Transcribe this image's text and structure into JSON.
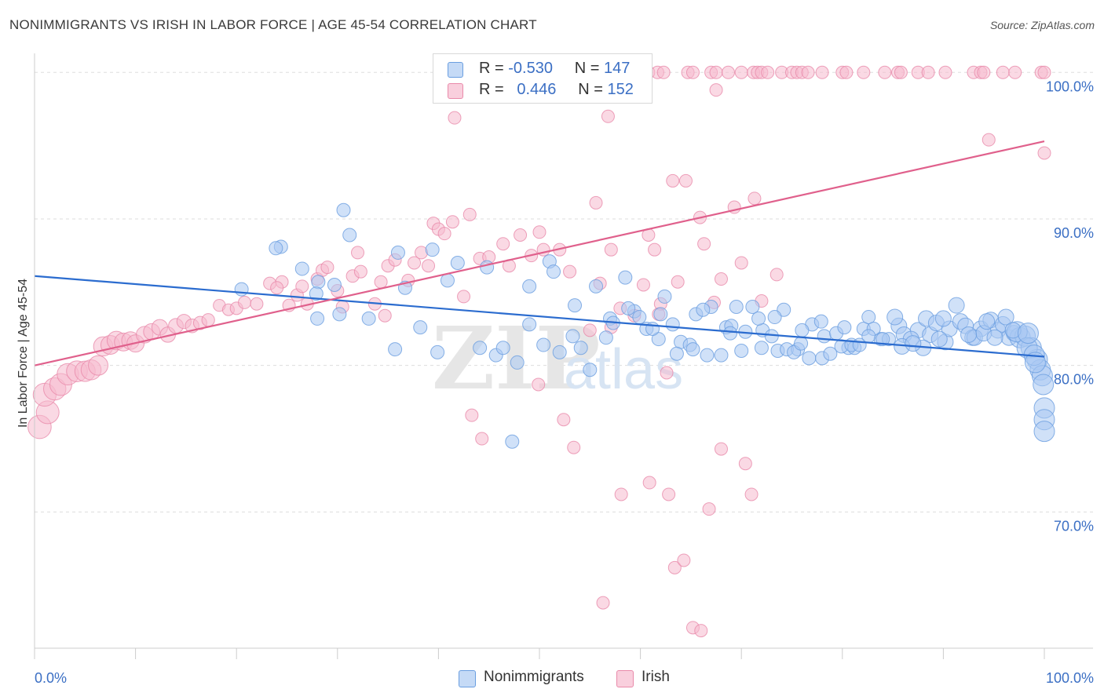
{
  "title": "NONIMMIGRANTS VS IRISH IN LABOR FORCE | AGE 45-54 CORRELATION CHART",
  "source": "Source: ZipAtlas.com",
  "watermark": {
    "zip": "ZIP",
    "atlas": "atlas"
  },
  "legend_top": [
    {
      "r_label": "R =",
      "r_value": "-0.530",
      "n_label": "N =",
      "n_value": "147"
    },
    {
      "r_label": "R =",
      "r_value": "0.446",
      "n_label": "N =",
      "n_value": "152"
    }
  ],
  "colors": {
    "blue_fill": "#a9c9f2",
    "blue_stroke": "#6a9ee0",
    "blue_line": "#2b6ccf",
    "pink_fill": "#f6b9cd",
    "pink_stroke": "#e98aaa",
    "pink_line": "#e0608c",
    "grid": "#dddddd",
    "axis_label": "#3b6fc4"
  },
  "chart_data": {
    "type": "scatter",
    "title": "NONIMMIGRANTS VS IRISH IN LABOR FORCE | AGE 45-54 CORRELATION CHART",
    "xlabel": "",
    "ylabel": "In Labor Force | Age 45-54",
    "xlim": [
      0,
      100
    ],
    "ylim": [
      60.7,
      101.3
    ],
    "x_tick_labels": [
      "0.0%",
      "100.0%"
    ],
    "y_ticks": [
      70,
      80,
      90,
      100
    ],
    "y_tick_labels": [
      "70.0%",
      "80.0%",
      "90.0%",
      "100.0%"
    ],
    "grid": true,
    "legend_position": "bottom",
    "series": [
      {
        "name": "Nonimmigrants",
        "r": -0.53,
        "n": 147,
        "trend": {
          "x": [
            0,
            100
          ],
          "y": [
            86.1,
            80.6
          ]
        },
        "points": [
          [
            30.6,
            90.6
          ],
          [
            24.4,
            88.1
          ],
          [
            23.9,
            88.0
          ],
          [
            31.2,
            88.9
          ],
          [
            36.0,
            87.7
          ],
          [
            39.4,
            87.9
          ],
          [
            41.9,
            87.0
          ],
          [
            44.8,
            86.7
          ],
          [
            51.0,
            87.1
          ],
          [
            26.5,
            86.6
          ],
          [
            28.1,
            85.7
          ],
          [
            29.7,
            85.5
          ],
          [
            40.9,
            85.8
          ],
          [
            49.0,
            85.4
          ],
          [
            51.4,
            86.4
          ],
          [
            55.6,
            85.4
          ],
          [
            58.5,
            86.0
          ],
          [
            62.4,
            84.7
          ],
          [
            36.7,
            85.3
          ],
          [
            27.9,
            84.9
          ],
          [
            30.2,
            83.5
          ],
          [
            33.1,
            83.2
          ],
          [
            38.2,
            82.6
          ],
          [
            35.7,
            81.1
          ],
          [
            39.9,
            80.9
          ],
          [
            45.7,
            80.7
          ],
          [
            47.8,
            80.2
          ],
          [
            28.0,
            83.2
          ],
          [
            20.5,
            85.2
          ],
          [
            44.1,
            81.2
          ],
          [
            46.4,
            81.2
          ],
          [
            49.0,
            82.8
          ],
          [
            50.4,
            81.4
          ],
          [
            54.1,
            81.2
          ],
          [
            57.0,
            83.2
          ],
          [
            59.4,
            83.7
          ],
          [
            60.6,
            82.5
          ],
          [
            61.8,
            81.8
          ],
          [
            64.0,
            81.6
          ],
          [
            64.9,
            81.4
          ],
          [
            66.6,
            80.7
          ],
          [
            68.0,
            80.7
          ],
          [
            68.5,
            82.6
          ],
          [
            69.5,
            84.0
          ],
          [
            72.0,
            81.2
          ],
          [
            72.1,
            82.4
          ],
          [
            73.6,
            81.0
          ],
          [
            74.5,
            81.1
          ],
          [
            75.6,
            81.1
          ],
          [
            76.7,
            80.5
          ],
          [
            77.0,
            82.8
          ],
          [
            78.0,
            80.5
          ],
          [
            78.2,
            82.0
          ],
          [
            79.4,
            82.2
          ],
          [
            80.6,
            81.2
          ],
          [
            81.2,
            81.2
          ],
          [
            82.1,
            82.5
          ],
          [
            82.6,
            83.3
          ],
          [
            83.8,
            81.8
          ],
          [
            84.6,
            81.8
          ],
          [
            85.6,
            82.7
          ],
          [
            86.1,
            82.1
          ],
          [
            87.5,
            82.4
          ],
          [
            88.3,
            83.2
          ],
          [
            88.7,
            82.1
          ],
          [
            89.3,
            82.9
          ],
          [
            90.2,
            81.6
          ],
          [
            90.6,
            82.5
          ],
          [
            91.7,
            83.0
          ],
          [
            92.2,
            82.7
          ],
          [
            92.9,
            81.9
          ],
          [
            93.7,
            82.5
          ],
          [
            94.7,
            83.1
          ],
          [
            95.4,
            82.4
          ],
          [
            95.9,
            82.8
          ],
          [
            96.5,
            81.9
          ],
          [
            97.0,
            82.2
          ],
          [
            97.6,
            81.9
          ],
          [
            98.1,
            82.0
          ],
          [
            98.7,
            81.2
          ],
          [
            99.3,
            80.4
          ],
          [
            99.6,
            79.7
          ],
          [
            99.8,
            79.3
          ],
          [
            99.9,
            78.7
          ],
          [
            100.0,
            77.1
          ],
          [
            100.0,
            76.3
          ],
          [
            100.0,
            75.5
          ],
          [
            55.0,
            79.7
          ],
          [
            52.0,
            80.9
          ],
          [
            57.3,
            82.9
          ],
          [
            58.8,
            83.9
          ],
          [
            62.0,
            83.5
          ],
          [
            63.2,
            82.8
          ],
          [
            65.5,
            83.5
          ],
          [
            67.0,
            84.0
          ],
          [
            69.0,
            82.7
          ],
          [
            70.4,
            82.3
          ],
          [
            71.1,
            84.0
          ],
          [
            73.0,
            82.0
          ],
          [
            74.2,
            83.8
          ],
          [
            76.0,
            82.4
          ],
          [
            77.9,
            83.0
          ],
          [
            79.9,
            81.3
          ],
          [
            80.9,
            81.4
          ],
          [
            81.7,
            81.4
          ],
          [
            83.1,
            82.5
          ],
          [
            84.0,
            81.8
          ],
          [
            85.2,
            83.3
          ],
          [
            86.8,
            81.8
          ],
          [
            88.0,
            81.2
          ],
          [
            90.0,
            83.2
          ],
          [
            91.3,
            84.1
          ],
          [
            93.1,
            81.9
          ],
          [
            94.0,
            82.2
          ],
          [
            95.1,
            81.9
          ],
          [
            96.2,
            83.3
          ],
          [
            97.3,
            82.3
          ],
          [
            98.3,
            81.2
          ],
          [
            99.0,
            80.7
          ],
          [
            47.3,
            74.8
          ],
          [
            56.6,
            81.9
          ],
          [
            53.3,
            82.0
          ],
          [
            53.5,
            84.1
          ],
          [
            61.2,
            82.5
          ],
          [
            66.2,
            83.8
          ],
          [
            68.9,
            82.2
          ],
          [
            71.7,
            83.2
          ],
          [
            75.2,
            80.9
          ],
          [
            78.8,
            80.8
          ],
          [
            82.6,
            82.0
          ],
          [
            85.9,
            81.3
          ],
          [
            87.0,
            81.5
          ],
          [
            89.6,
            81.8
          ],
          [
            92.5,
            82.1
          ],
          [
            94.3,
            83.0
          ],
          [
            96.9,
            82.4
          ],
          [
            98.4,
            82.2
          ],
          [
            99.1,
            80.2
          ],
          [
            59.9,
            83.3
          ],
          [
            63.6,
            80.8
          ],
          [
            65.2,
            81.1
          ],
          [
            70.0,
            81.0
          ],
          [
            73.3,
            83.3
          ],
          [
            75.9,
            81.5
          ],
          [
            80.2,
            82.6
          ]
        ]
      },
      {
        "name": "Irish",
        "r": 0.446,
        "n": 152,
        "trend": {
          "x": [
            0,
            100
          ],
          "y": [
            80.0,
            95.3
          ]
        },
        "points": [
          [
            0.5,
            75.8
          ],
          [
            1.3,
            76.8
          ],
          [
            1.0,
            78.0
          ],
          [
            2.0,
            78.4
          ],
          [
            2.6,
            78.7
          ],
          [
            3.3,
            79.4
          ],
          [
            4.2,
            79.6
          ],
          [
            5.0,
            79.6
          ],
          [
            5.6,
            79.7
          ],
          [
            6.3,
            80.0
          ],
          [
            6.8,
            81.3
          ],
          [
            7.5,
            81.4
          ],
          [
            8.1,
            81.7
          ],
          [
            8.8,
            81.6
          ],
          [
            9.5,
            81.7
          ],
          [
            10.0,
            81.5
          ],
          [
            10.9,
            82.1
          ],
          [
            11.6,
            82.3
          ],
          [
            12.4,
            82.6
          ],
          [
            13.2,
            82.1
          ],
          [
            14.0,
            82.7
          ],
          [
            14.8,
            83.0
          ],
          [
            15.6,
            82.7
          ],
          [
            16.4,
            82.9
          ],
          [
            17.2,
            83.1
          ],
          [
            18.3,
            84.1
          ],
          [
            19.2,
            83.8
          ],
          [
            20.0,
            83.9
          ],
          [
            20.8,
            84.3
          ],
          [
            22.0,
            84.2
          ],
          [
            23.3,
            85.6
          ],
          [
            24.5,
            85.7
          ],
          [
            25.2,
            84.1
          ],
          [
            26.0,
            84.8
          ],
          [
            26.5,
            85.4
          ],
          [
            27.0,
            84.2
          ],
          [
            28.0,
            85.9
          ],
          [
            28.5,
            86.5
          ],
          [
            29.0,
            86.7
          ],
          [
            30.0,
            85.1
          ],
          [
            30.5,
            84.0
          ],
          [
            31.5,
            86.1
          ],
          [
            32.0,
            87.7
          ],
          [
            32.3,
            86.4
          ],
          [
            33.7,
            84.2
          ],
          [
            34.3,
            85.7
          ],
          [
            35.0,
            86.8
          ],
          [
            35.7,
            87.2
          ],
          [
            37.0,
            85.8
          ],
          [
            37.6,
            87.0
          ],
          [
            38.3,
            87.7
          ],
          [
            39.0,
            86.8
          ],
          [
            39.5,
            89.7
          ],
          [
            40.0,
            89.3
          ],
          [
            40.6,
            89.0
          ],
          [
            41.4,
            89.8
          ],
          [
            42.5,
            84.7
          ],
          [
            43.1,
            90.3
          ],
          [
            44.1,
            87.3
          ],
          [
            45.0,
            87.4
          ],
          [
            46.4,
            88.3
          ],
          [
            47.0,
            86.8
          ],
          [
            48.1,
            88.9
          ],
          [
            49.2,
            87.5
          ],
          [
            50.0,
            89.1
          ],
          [
            50.4,
            87.9
          ],
          [
            52.0,
            87.9
          ],
          [
            53.0,
            86.4
          ],
          [
            55.6,
            91.1
          ],
          [
            56.0,
            85.6
          ],
          [
            57.1,
            87.9
          ],
          [
            58.0,
            83.9
          ],
          [
            59.4,
            83.4
          ],
          [
            60.3,
            85.5
          ],
          [
            60.8,
            88.9
          ],
          [
            61.4,
            87.9
          ],
          [
            62.0,
            84.2
          ],
          [
            63.2,
            92.6
          ],
          [
            63.7,
            85.7
          ],
          [
            64.5,
            92.6
          ],
          [
            65.9,
            90.1
          ],
          [
            66.3,
            88.3
          ],
          [
            67.3,
            84.3
          ],
          [
            68.0,
            85.9
          ],
          [
            69.3,
            90.8
          ],
          [
            70.0,
            87.0
          ],
          [
            71.3,
            91.4
          ],
          [
            72.0,
            84.4
          ],
          [
            73.5,
            86.2
          ],
          [
            56.8,
            97.0
          ],
          [
            67.5,
            98.8
          ],
          [
            41.6,
            96.9
          ],
          [
            59.2,
            99.0
          ],
          [
            60.0,
            99.9
          ],
          [
            60.4,
            100.0
          ],
          [
            60.8,
            100.0
          ],
          [
            61.7,
            100.0
          ],
          [
            62.3,
            100.0
          ],
          [
            64.7,
            100.0
          ],
          [
            65.2,
            100.0
          ],
          [
            67.0,
            100.0
          ],
          [
            67.5,
            100.0
          ],
          [
            68.7,
            100.0
          ],
          [
            70.0,
            100.0
          ],
          [
            71.2,
            100.0
          ],
          [
            71.6,
            100.0
          ],
          [
            72.0,
            100.0
          ],
          [
            72.6,
            100.0
          ],
          [
            74.0,
            100.0
          ],
          [
            75.0,
            100.0
          ],
          [
            75.5,
            100.0
          ],
          [
            76.0,
            100.0
          ],
          [
            76.6,
            100.0
          ],
          [
            78.0,
            100.0
          ],
          [
            80.0,
            100.0
          ],
          [
            80.4,
            100.0
          ],
          [
            82.1,
            100.0
          ],
          [
            84.2,
            100.0
          ],
          [
            85.5,
            100.0
          ],
          [
            85.8,
            100.0
          ],
          [
            87.5,
            100.0
          ],
          [
            88.5,
            100.0
          ],
          [
            90.2,
            100.0
          ],
          [
            93.0,
            100.0
          ],
          [
            93.7,
            100.0
          ],
          [
            94.0,
            100.0
          ],
          [
            95.9,
            100.0
          ],
          [
            97.1,
            100.0
          ],
          [
            99.7,
            100.0
          ],
          [
            100.0,
            100.0
          ],
          [
            100.0,
            94.5
          ],
          [
            94.5,
            95.4
          ],
          [
            43.3,
            76.6
          ],
          [
            44.3,
            75.0
          ],
          [
            49.9,
            78.7
          ],
          [
            52.4,
            76.3
          ],
          [
            53.4,
            74.4
          ],
          [
            57.1,
            82.6
          ],
          [
            58.1,
            71.2
          ],
          [
            60.9,
            72.0
          ],
          [
            62.8,
            71.2
          ],
          [
            63.4,
            66.2
          ],
          [
            64.3,
            66.7
          ],
          [
            65.2,
            62.1
          ],
          [
            66.0,
            61.9
          ],
          [
            66.8,
            70.2
          ],
          [
            68.0,
            74.3
          ],
          [
            70.4,
            73.3
          ],
          [
            71.0,
            71.2
          ],
          [
            56.3,
            63.8
          ],
          [
            61.8,
            83.5
          ],
          [
            55.0,
            82.4
          ],
          [
            62.6,
            79.5
          ],
          [
            24.0,
            85.3
          ],
          [
            34.7,
            83.4
          ]
        ]
      }
    ]
  },
  "legend_bottom": [
    "Nonimmigrants",
    "Irish"
  ]
}
